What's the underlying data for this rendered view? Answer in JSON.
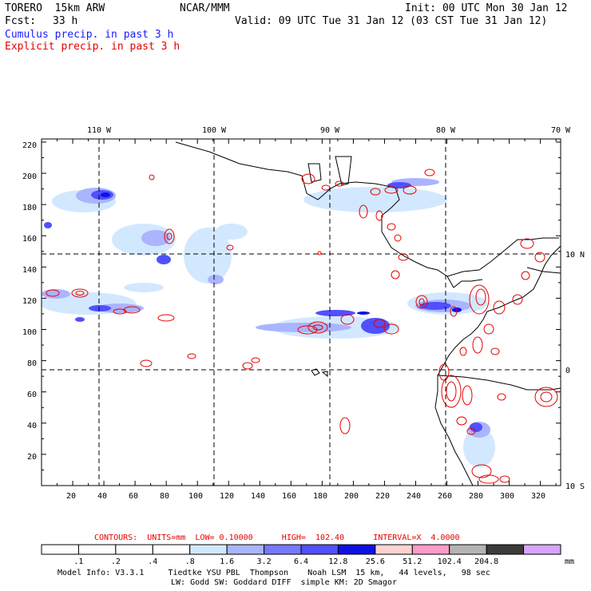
{
  "header": {
    "model": "TORERO  15km ARW",
    "org": "NCAR/MMM",
    "init": "Init: 00 UTC Mon 30 Jan 12",
    "fcst_label": "Fcst:",
    "fcst_value": "33 h",
    "valid": "Valid: 09 UTC Tue 31 Jan 12 (03 CST Tue 31 Jan 12)",
    "line_cumulus": "Cumulus precip. in past 3 h",
    "line_explicit": "Explicit precip. in past 3 h"
  },
  "map": {
    "lon_labels": [
      "110 W",
      "100 W",
      "90 W",
      "80 W",
      "70 W"
    ],
    "lat_labels": [
      "10 N",
      "0",
      "10 S"
    ],
    "y_ticks": [
      "220",
      "200",
      "180",
      "160",
      "140",
      "120",
      "100",
      "80",
      "60",
      "40",
      "20"
    ],
    "x_ticks": [
      "20",
      "40",
      "60",
      "80",
      "100",
      "120",
      "140",
      "160",
      "180",
      "200",
      "220",
      "240",
      "260",
      "280",
      "300",
      "320"
    ],
    "colors": {
      "cumulus": "#2424ff",
      "explicit": "#e60000",
      "coast": "#000000",
      "grid": "#000000"
    }
  },
  "contours_line": "CONTOURS:  UNITS=mm  LOW= 0.10000      HIGH=  102.40      INTERVAL=X  4.0000",
  "colorbar": {
    "unit": "mm",
    "labels": [
      ".1",
      ".2",
      ".4",
      ".8",
      "1.6",
      "3.2",
      "6.4",
      "12.8",
      "25.6",
      "51.2",
      "102.4",
      "204.8"
    ],
    "colors": [
      "#ffffff",
      "#ffffff",
      "#ffffff",
      "#ffffff",
      "#d2e8ff",
      "#aab4ff",
      "#7878ff",
      "#5050ff",
      "#1010e6",
      "#ffd2d2",
      "#ff9ac8",
      "#b4b4b4",
      "#3c3c3c",
      "#d7a4ff"
    ]
  },
  "footer": {
    "line1": "Model Info: V3.3.1     Tiedtke YSU PBL  Thompson    Noah LSM  15 km,   44 levels,   98 sec",
    "line2": "LW: Godd SW: Goddard DIFF  simple KM: 2D Smagor"
  }
}
